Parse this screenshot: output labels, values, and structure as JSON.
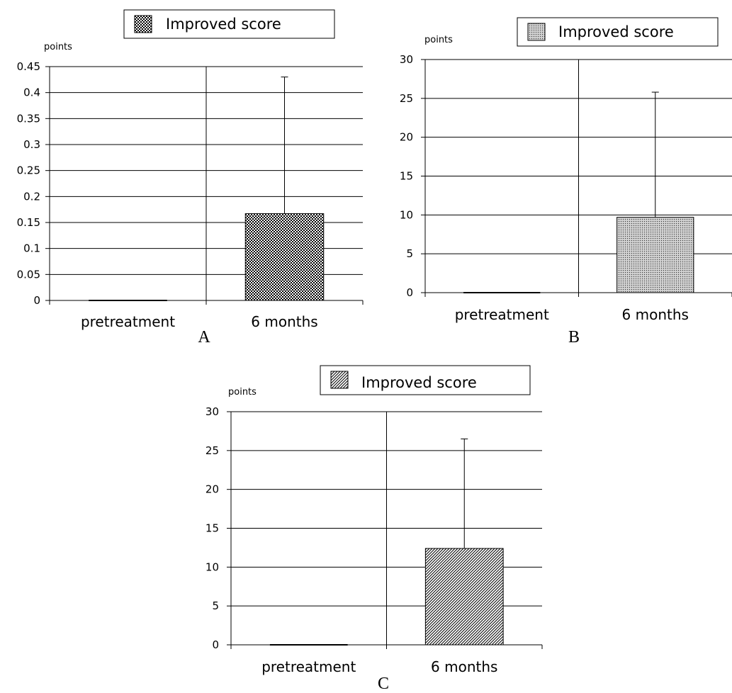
{
  "chart_data": [
    {
      "type": "bar",
      "ylabel": "points",
      "categories": [
        "pretreatment",
        "6 months"
      ],
      "series": [
        {
          "name": "Improved score",
          "values": [
            0,
            0.167
          ],
          "error_upper": [
            0,
            0.43
          ]
        }
      ],
      "ylim": [
        0,
        0.45
      ],
      "yticks": [
        "0",
        "0.05",
        "0.1",
        "0.15",
        "0.2",
        "0.25",
        "0.3",
        "0.35",
        "0.4",
        "0.45"
      ],
      "grid": true,
      "legend": "top",
      "panel_label": "A",
      "pattern": "checker"
    },
    {
      "type": "bar",
      "ylabel": "points",
      "categories": [
        "pretreatment",
        "6 months"
      ],
      "series": [
        {
          "name": "Improved score",
          "values": [
            0,
            9.7
          ],
          "error_upper": [
            0,
            25.8
          ]
        }
      ],
      "ylim": [
        0,
        30
      ],
      "yticks": [
        "0",
        "5",
        "10",
        "15",
        "20",
        "25",
        "30"
      ],
      "grid": true,
      "legend": "top",
      "panel_label": "B",
      "pattern": "dots"
    },
    {
      "type": "bar",
      "ylabel": "points",
      "categories": [
        "pretreatment",
        "6 months"
      ],
      "series": [
        {
          "name": "Improved score",
          "values": [
            0,
            12.4
          ],
          "error_upper": [
            0,
            26.5
          ]
        }
      ],
      "ylim": [
        0,
        30
      ],
      "yticks": [
        "0",
        "5",
        "10",
        "15",
        "20",
        "25",
        "30"
      ],
      "grid": true,
      "legend": "top",
      "panel_label": "C",
      "pattern": "diagonal"
    }
  ]
}
